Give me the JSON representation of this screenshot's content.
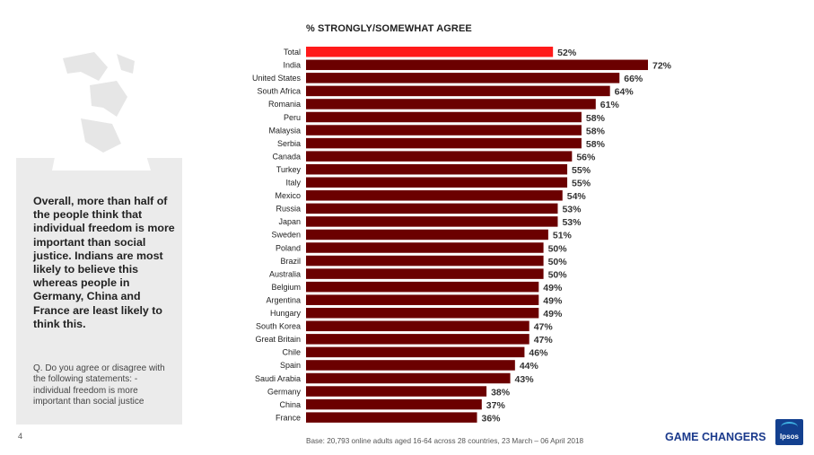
{
  "left_panel": {
    "summary": "Overall, more than half of the people think that individual freedom is more important than social justice. Indians are most likely to believe this whereas people in Germany, China and France are least likely to think this.",
    "question": "Q. Do you agree or disagree with the following statements: - individual freedom is more important than social justice"
  },
  "page_number": "4",
  "footer": {
    "base": "Base: 20,793 online adults aged 16-64 across 28 countries,  23 March – 06 April 2018",
    "tagline": "GAME CHANGERS",
    "logo_text": "Ipsos"
  },
  "colors": {
    "highlight": "#ff1a1a",
    "bar": "#6b0000",
    "panel": "#ebebeb",
    "brand": "#1b3a8c"
  },
  "chart_data": {
    "type": "bar",
    "orientation": "horizontal",
    "title": "% STRONGLY/SOMEWHAT AGREE",
    "categories": [
      "Total",
      "India",
      "United States",
      "South Africa",
      "Romania",
      "Peru",
      "Malaysia",
      "Serbia",
      "Canada",
      "Turkey",
      "Italy",
      "Mexico",
      "Russia",
      "Japan",
      "Sweden",
      "Poland",
      "Brazil",
      "Australia",
      "Belgium",
      "Argentina",
      "Hungary",
      "South Korea",
      "Great Britain",
      "Chile",
      "Spain",
      "Saudi Arabia",
      "Germany",
      "China",
      "France"
    ],
    "values": [
      52,
      72,
      66,
      64,
      61,
      58,
      58,
      58,
      56,
      55,
      55,
      54,
      53,
      53,
      51,
      50,
      50,
      50,
      49,
      49,
      49,
      47,
      47,
      46,
      44,
      43,
      38,
      37,
      36
    ],
    "value_labels": [
      "52%",
      "72%",
      "66%",
      "64%",
      "61%",
      "58%",
      "58%",
      "58%",
      "56%",
      "55%",
      "55%",
      "54%",
      "53%",
      "53%",
      "51%",
      "50%",
      "50%",
      "50%",
      "49%",
      "49%",
      "49%",
      "47%",
      "47%",
      "46%",
      "44%",
      "43%",
      "38%",
      "37%",
      "36%"
    ],
    "highlight_index": 0,
    "xlim": [
      0,
      72
    ]
  }
}
